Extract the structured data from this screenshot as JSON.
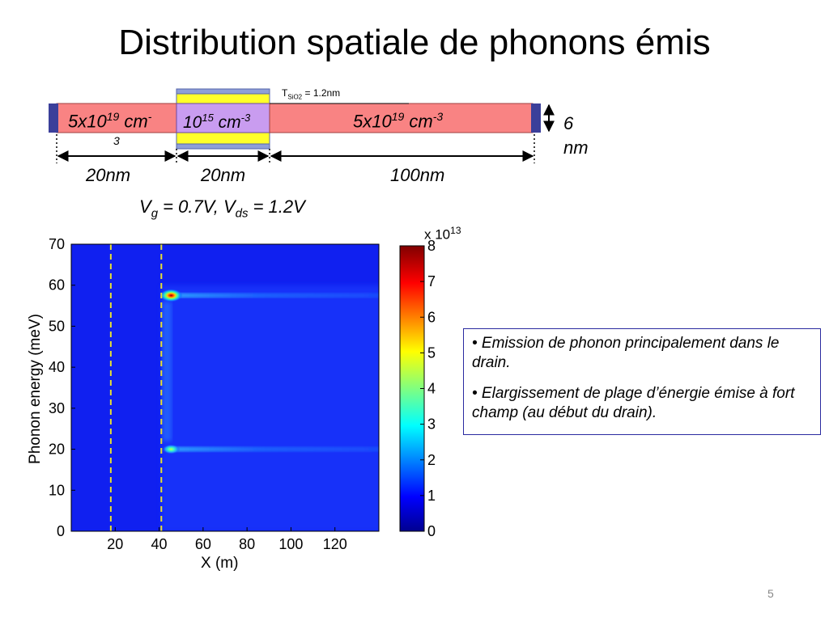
{
  "title": "Distribution spatiale de phonons émis",
  "device": {
    "tsio2_prefix": "T",
    "tsio2_sub": "SiO2",
    "tsio2_rest": " = 1.2nm",
    "left_doping": {
      "base": "5x10",
      "exp": "19",
      "unit": " cm",
      "unit_exp": "-",
      "wrap": "3"
    },
    "gate_doping": {
      "base": "10",
      "exp": "15",
      "unit": " cm",
      "unit_exp": "-3"
    },
    "right_doping": {
      "base": "5x10",
      "exp": "19",
      "unit": " cm",
      "unit_exp": "-3"
    },
    "thickness_value": "6",
    "thickness_unit": "nm",
    "dim_left": "20nm",
    "dim_gate": "20nm",
    "dim_right": "100nm",
    "bias": {
      "v1": "V",
      "v1_sub": "g",
      "v1_val": " = 0.7V, ",
      "v2": "V",
      "v2_sub": "ds",
      "v2_val": " = 1.2V"
    },
    "colors": {
      "source_drain": "#f98383",
      "gate_channel": "#c99cf0",
      "oxide": "#ffff2a",
      "contact": "#3b3f9a",
      "oxide_border": "#6f7fc6"
    }
  },
  "chart_data": {
    "type": "heatmap",
    "xlabel": "X (m)",
    "ylabel": "Phonon energy (meV)",
    "xlim": [
      0,
      140
    ],
    "ylim": [
      0,
      70
    ],
    "x_ticks": [
      "20",
      "40",
      "60",
      "80",
      "100",
      "120"
    ],
    "y_ticks": [
      "0",
      "10",
      "20",
      "30",
      "40",
      "50",
      "60",
      "70"
    ],
    "x_tick_values": [
      20,
      40,
      60,
      80,
      100,
      120
    ],
    "y_tick_values": [
      0,
      10,
      20,
      30,
      40,
      50,
      60,
      70
    ],
    "dashed_lines_x": [
      18,
      41
    ],
    "dashed_line_color": "#e8e030",
    "hotspots": [
      {
        "x": 44,
        "y": 57.5,
        "value": 8
      },
      {
        "x": 44,
        "y": 20,
        "value": 3.5
      }
    ],
    "colorbar": {
      "multiplier": "x 10",
      "multiplier_exp": "13",
      "range": [
        0,
        8
      ],
      "ticks": [
        "0",
        "1",
        "2",
        "3",
        "4",
        "5",
        "6",
        "7",
        "8"
      ]
    }
  },
  "notes": [
    "• Emission de phonon principalement dans le drain.",
    "• Elargissement de plage d’énergie émise à fort champ (au début du drain)."
  ],
  "page_number": "5"
}
